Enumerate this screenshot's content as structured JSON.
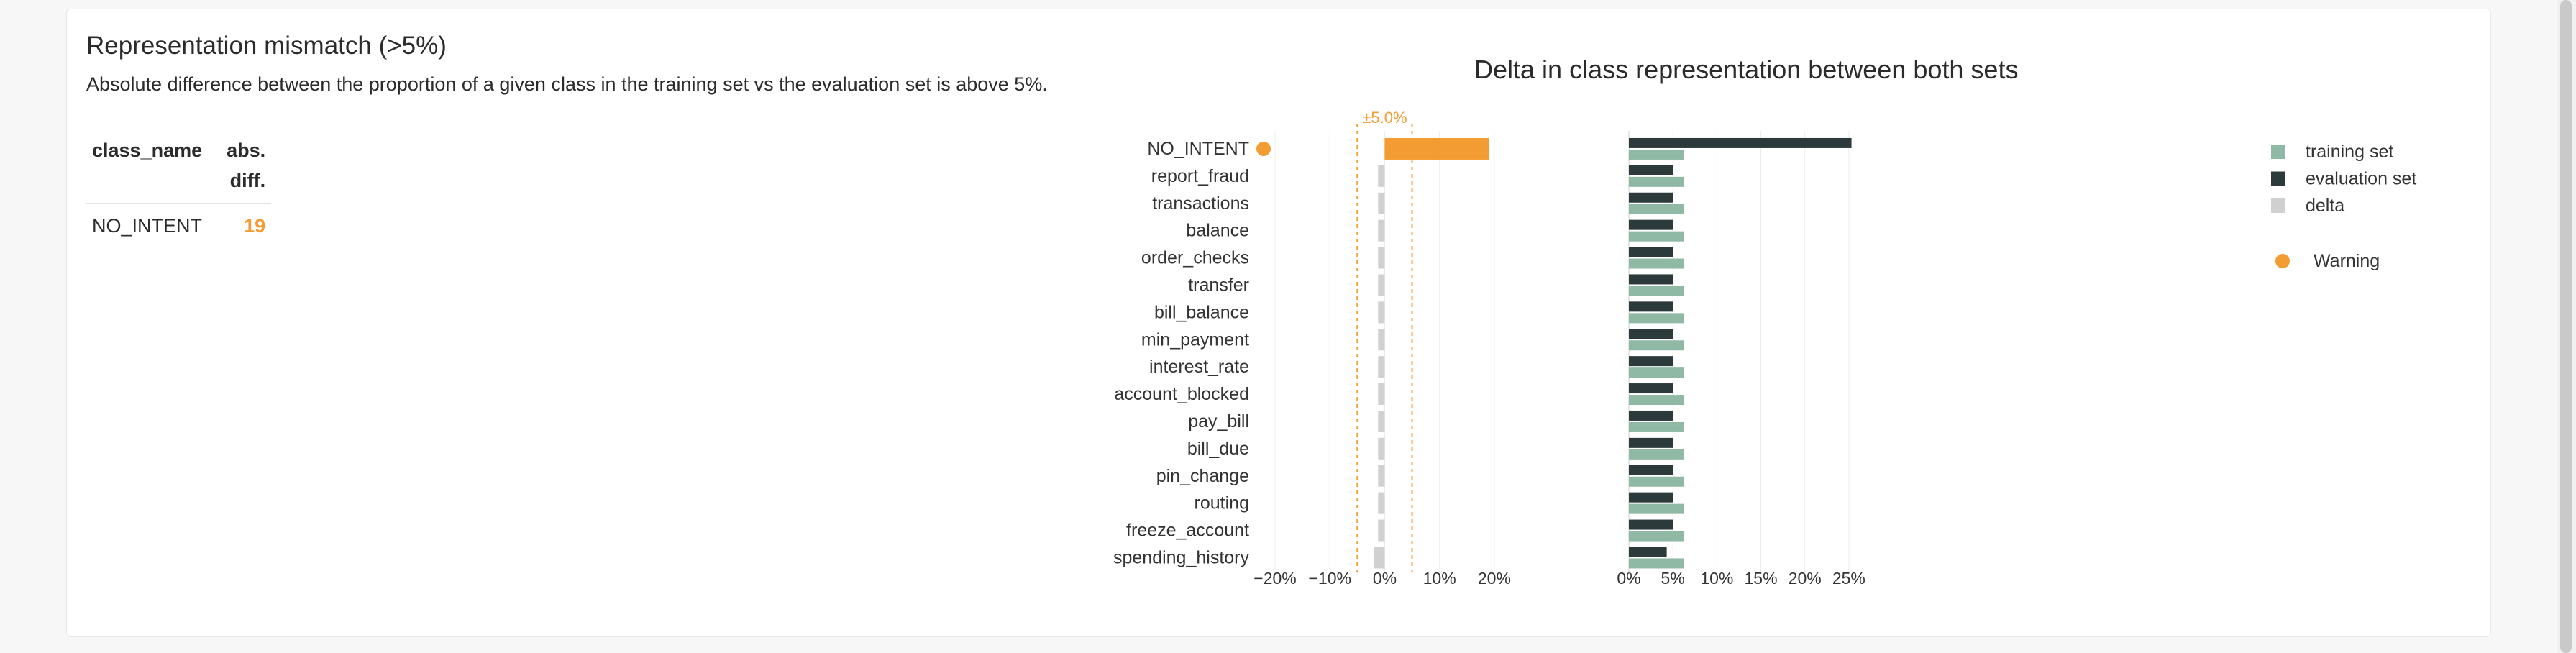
{
  "panel": {
    "title": "Representation mismatch (>5%)",
    "description": "Absolute difference between the proportion of a given class in the training set vs the evaluation set is above 5%."
  },
  "table": {
    "headers": [
      "class_name",
      "abs. diff."
    ],
    "rows": [
      {
        "class_name": "NO_INTENT",
        "abs_diff": "19"
      }
    ]
  },
  "colors": {
    "training": "#8fb9a4",
    "evaluation": "#2c3a3b",
    "delta": "#d0d0d0",
    "warning": "#f39c33"
  },
  "chart_data": {
    "type": "bar",
    "title": "Delta in class representation between both sets",
    "categories": [
      "NO_INTENT",
      "report_fraud",
      "transactions",
      "balance",
      "order_checks",
      "transfer",
      "bill_balance",
      "min_payment",
      "interest_rate",
      "account_blocked",
      "pay_bill",
      "bill_due",
      "pin_change",
      "routing",
      "freeze_account",
      "spending_history"
    ],
    "warnings": [
      "NO_INTENT"
    ],
    "delta_panel": {
      "series_name": "delta",
      "values": [
        19.0,
        -1.2,
        -1.2,
        -1.2,
        -1.2,
        -1.2,
        -1.2,
        -1.2,
        -1.2,
        -1.2,
        -1.2,
        -1.2,
        -1.2,
        -1.2,
        -1.2,
        -1.9
      ],
      "xlim": [
        -20,
        25
      ],
      "ticks": [
        -20,
        -10,
        0,
        10,
        20
      ],
      "tick_labels": [
        "−20%",
        "−10%",
        "0%",
        "10%",
        "20%"
      ],
      "threshold": 5,
      "threshold_label": "±5.0%"
    },
    "sets_panel": {
      "series": [
        {
          "name": "training set",
          "values": [
            6.25,
            6.25,
            6.25,
            6.25,
            6.25,
            6.25,
            6.25,
            6.25,
            6.25,
            6.25,
            6.25,
            6.25,
            6.25,
            6.25,
            6.25,
            6.25
          ]
        },
        {
          "name": "evaluation set",
          "values": [
            25.3,
            5.0,
            5.0,
            5.0,
            5.0,
            5.0,
            5.0,
            5.0,
            5.0,
            5.0,
            5.0,
            5.0,
            5.0,
            5.0,
            5.0,
            4.3
          ]
        }
      ],
      "xlim": [
        0,
        25.5
      ],
      "ticks": [
        0,
        5,
        10,
        15,
        20,
        25
      ],
      "tick_labels": [
        "0%",
        "5%",
        "10%",
        "15%",
        "20%",
        "25%"
      ]
    },
    "legend": {
      "items": [
        "training set",
        "evaluation set",
        "delta"
      ],
      "warning_label": "Warning",
      "placement": "right"
    },
    "grid": true
  }
}
